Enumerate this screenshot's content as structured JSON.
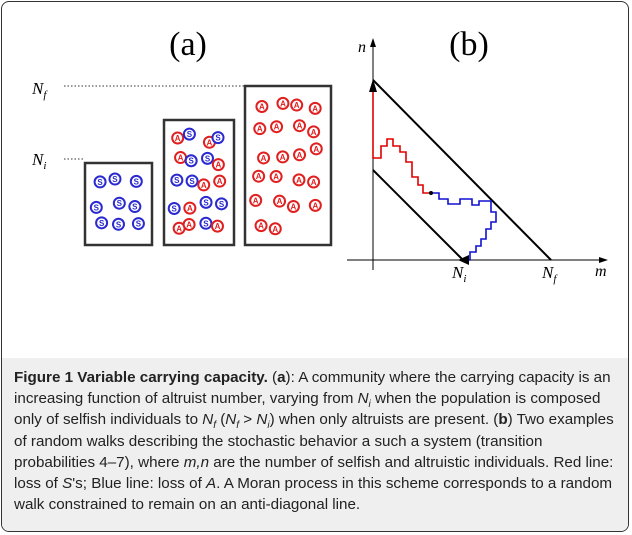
{
  "panel_a": {
    "label": "(a)",
    "levels": [
      {
        "symbol": "N",
        "subscript": "f"
      },
      {
        "symbol": "N",
        "subscript": "i"
      }
    ],
    "boxes": [
      {
        "circles": [
          "S",
          "S",
          "S",
          "S",
          "S",
          "S",
          "S",
          "S",
          "S"
        ]
      },
      {
        "circles": [
          "A",
          "S",
          "A",
          "S",
          "A",
          "S",
          "S",
          "A",
          "S",
          "S",
          "A",
          "A",
          "S",
          "A",
          "S",
          "S",
          "A",
          "A",
          "S",
          "A"
        ]
      },
      {
        "circles": [
          "A",
          "A",
          "A",
          "A",
          "A",
          "A",
          "A",
          "A",
          "A",
          "A",
          "A",
          "A",
          "A",
          "A",
          "A",
          "A",
          "A",
          "A",
          "A",
          "A",
          "A",
          "A"
        ]
      }
    ]
  },
  "panel_b": {
    "label": "(b)",
    "y_axis_label": "n",
    "x_axis_label": "m",
    "x_ticks": [
      {
        "symbol": "N",
        "subscript": "i"
      },
      {
        "symbol": "N",
        "subscript": "f"
      }
    ]
  },
  "caption": {
    "runs": [
      "Figure 1 Variable carrying capacity.",
      " (",
      "a",
      "): A community where the carrying capacity is an increasing function of altruist number, varying from ",
      "N",
      "i",
      " when the population is composed only of selfish individuals to ",
      "N",
      "f",
      " (",
      "N",
      "f",
      " > ",
      "N",
      "i",
      ") when only altruists are present. (",
      "b",
      ") Two examples of random walks describing the stochastic behavior a such a system (transition probabilities 4–7), where ",
      "m,n",
      " are the number of selfish and altruistic individuals. Red line: loss of ",
      "S",
      "'s; Blue line: loss of ",
      "A",
      ". A Moran process in this scheme corresponds to a random walk constrained to remain on an anti-diagonal line."
    ]
  }
}
